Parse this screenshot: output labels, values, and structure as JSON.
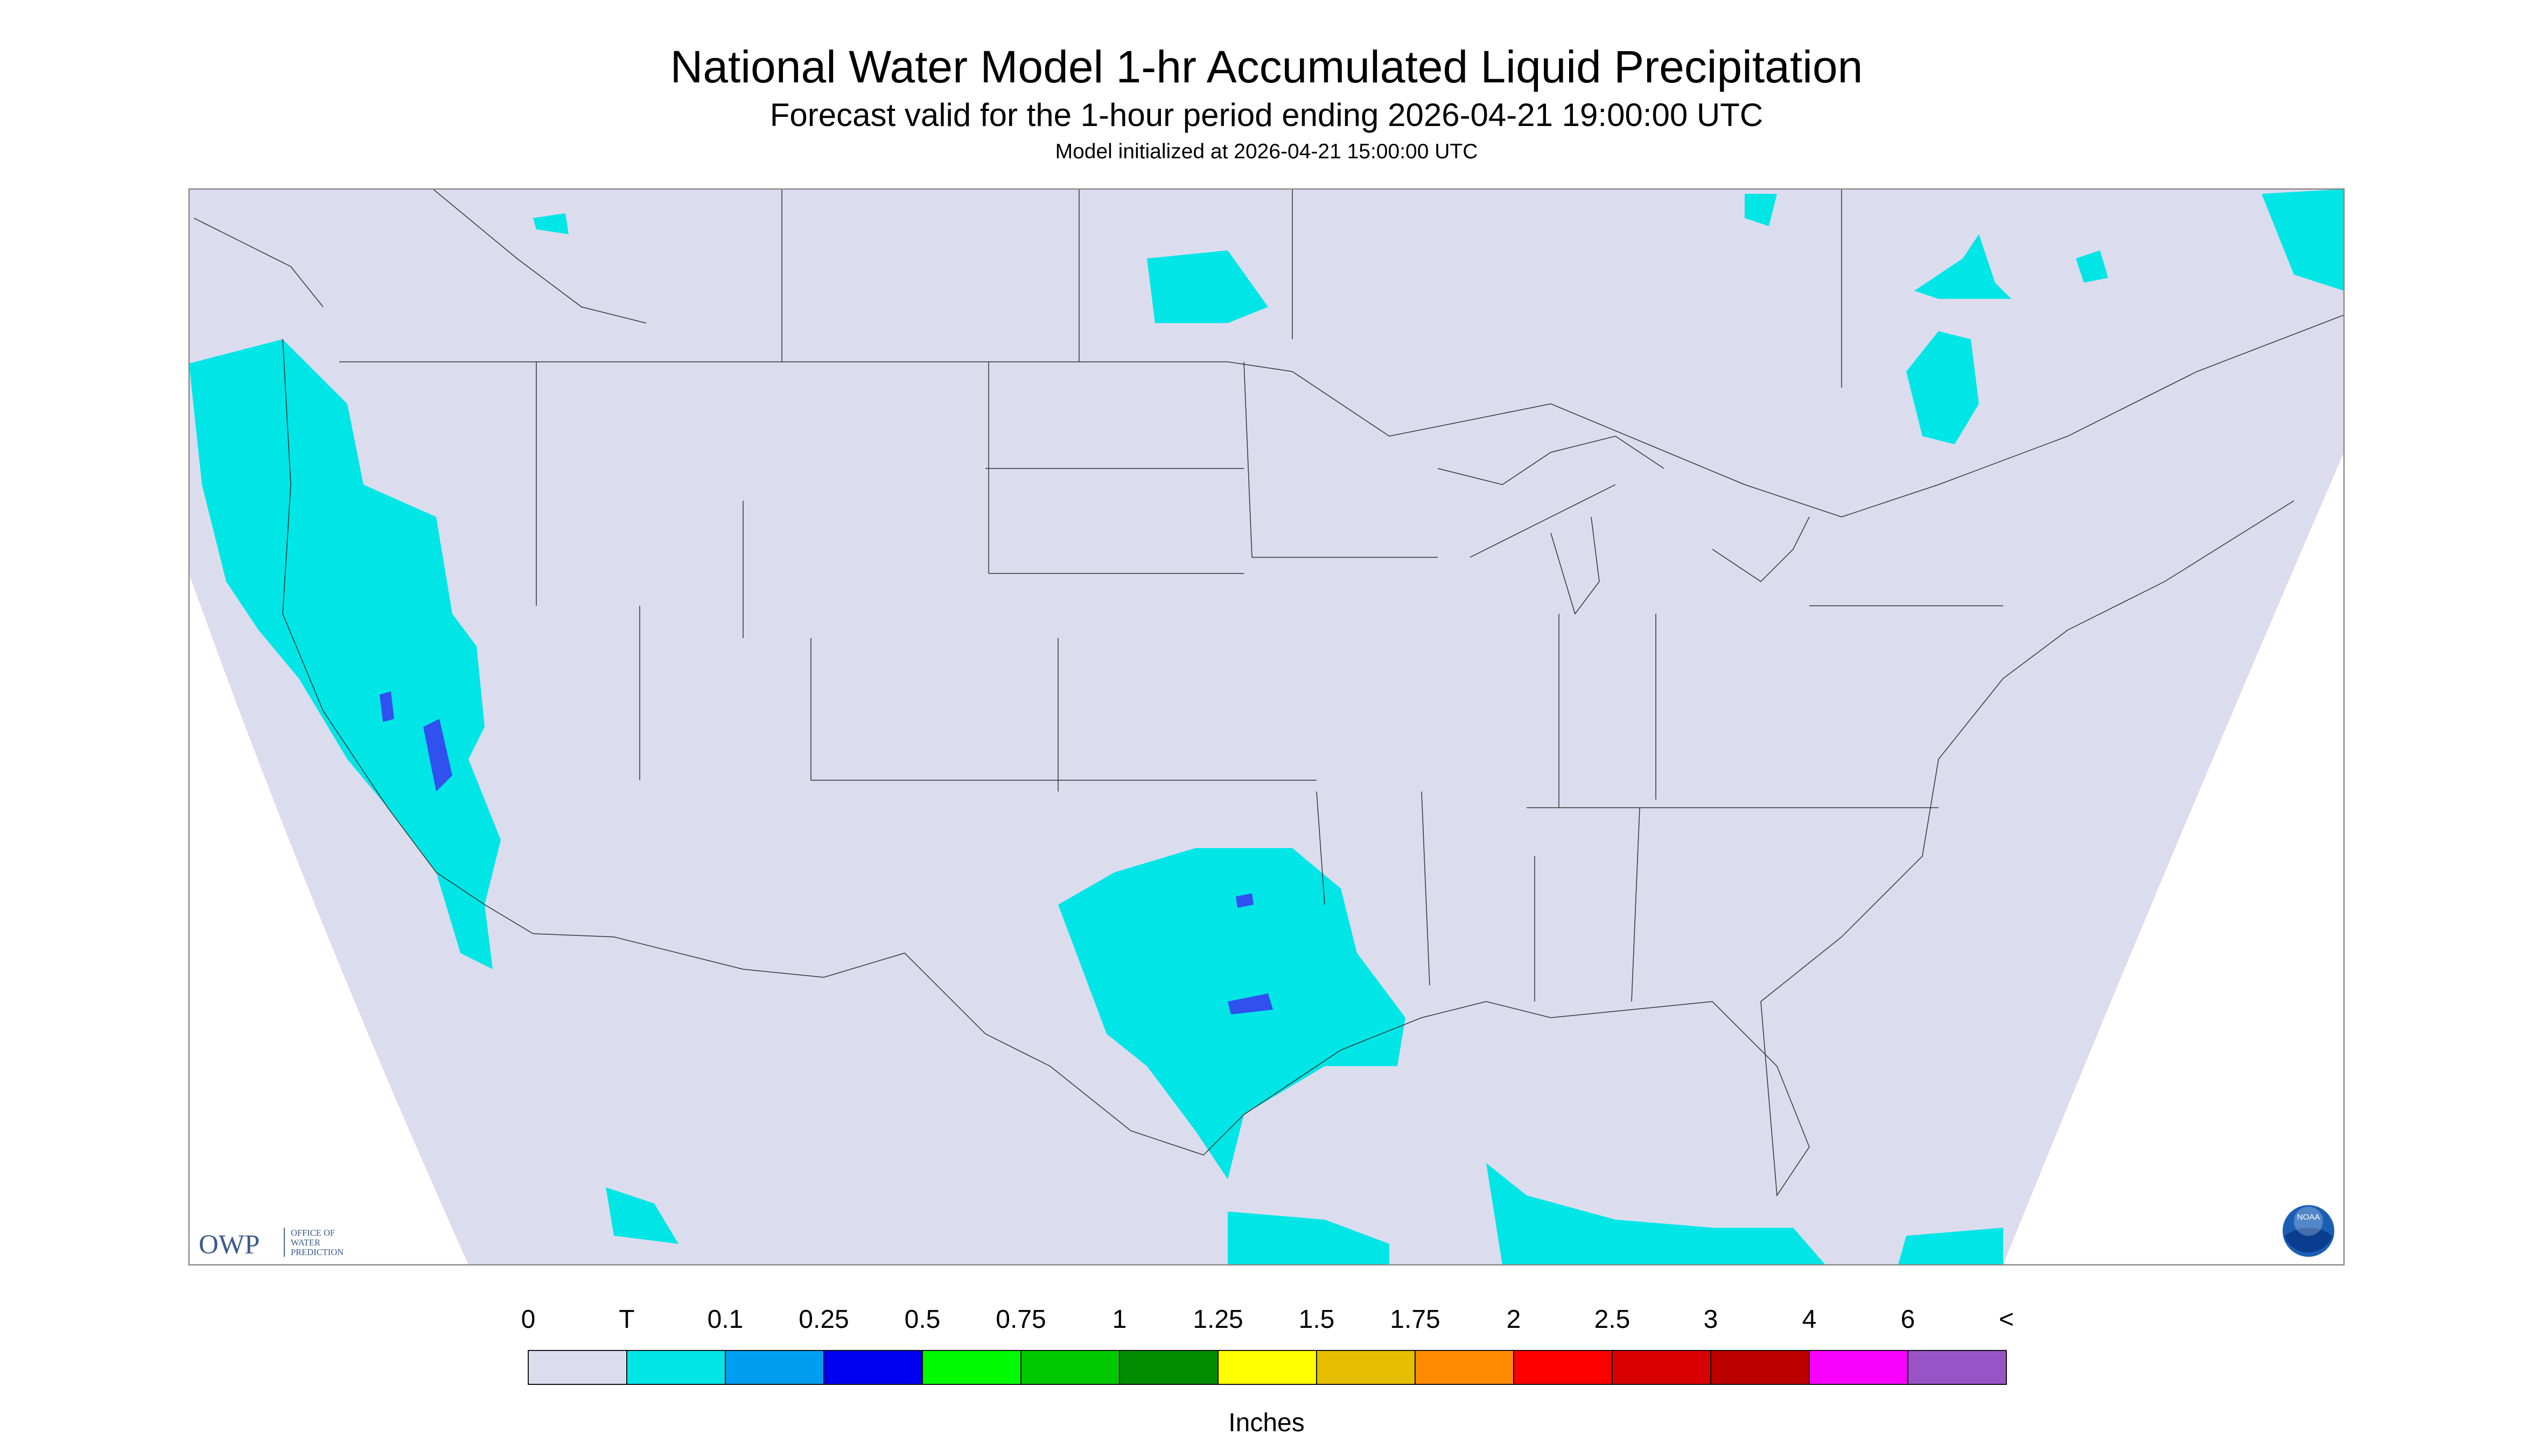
{
  "header": {
    "title": "National Water Model 1-hr Accumulated Liquid Precipitation",
    "subtitle": "Forecast valid for the 1-hour period ending 2026-04-21 19:00:00 UTC",
    "note": "Model initialized at 2026-04-21 15:00:00 UTC"
  },
  "logo": {
    "name": "OWP",
    "text": [
      "OFFICE OF",
      "WATER",
      "PREDICTION"
    ],
    "noaa": "NOAA"
  },
  "legend": {
    "labels": [
      "0",
      "T",
      "0.1",
      "0.25",
      "0.5",
      "0.75",
      "1",
      "1.25",
      "1.5",
      "1.75",
      "2",
      "2.5",
      "3",
      "4",
      "6",
      "<"
    ],
    "colors": [
      "#dcdcef",
      "#00e6e6",
      "#009ef0",
      "#0000f0",
      "#00fa00",
      "#00c800",
      "#008c00",
      "#ffff00",
      "#e6be00",
      "#ff8c00",
      "#ff0000",
      "#d80000",
      "#bc0000",
      "#f800fd",
      "#9854c6"
    ],
    "unit": "Inches"
  }
}
